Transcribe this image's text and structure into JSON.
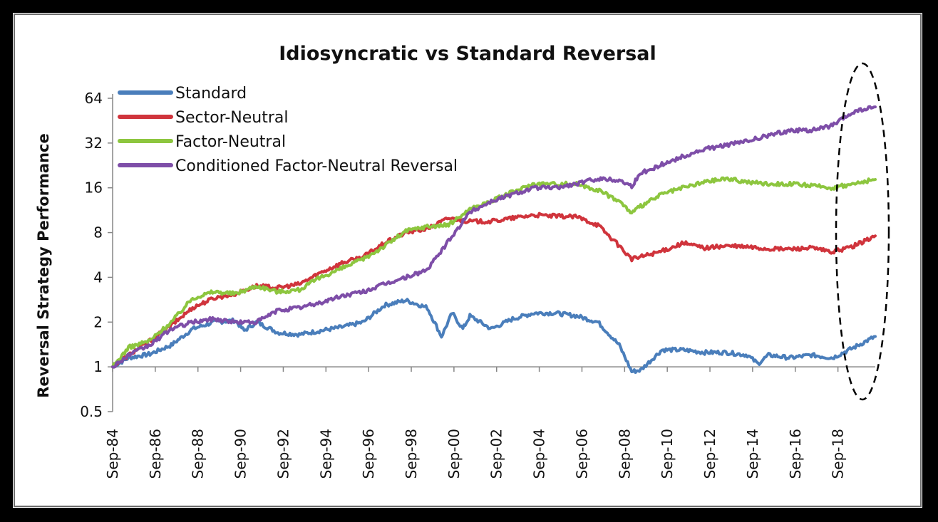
{
  "chart_data": {
    "type": "line",
    "title": "Idiosyncratic vs Standard Reversal",
    "xlabel": "",
    "ylabel": "Reversal Strategy Performance",
    "y_scale": "log2",
    "ylim": [
      0.5,
      64
    ],
    "y_ticks": [
      0.5,
      1,
      2,
      4,
      8,
      16,
      32,
      64
    ],
    "y_tick_labels": [
      "0.5",
      "1",
      "2",
      "4",
      "8",
      "16",
      "32",
      "64"
    ],
    "x_tick_labels": [
      "Sep-84",
      "Sep-86",
      "Sep-88",
      "Sep-90",
      "Sep-92",
      "Sep-94",
      "Sep-96",
      "Sep-98",
      "Sep-00",
      "Sep-02",
      "Sep-04",
      "Sep-06",
      "Sep-08",
      "Sep-10",
      "Sep-12",
      "Sep-14",
      "Sep-16",
      "Sep-18"
    ],
    "xlim": [
      "1984-09",
      "2020-06"
    ],
    "grid": false,
    "legend_position": "top-left",
    "annotation": "dashed ellipse highlighting the most recent period",
    "series": [
      {
        "name": "Standard",
        "color": "#4a7ebb",
        "points": [
          [
            "1984-09",
            1.0
          ],
          [
            "1985-06",
            1.15
          ],
          [
            "1986-06",
            1.22
          ],
          [
            "1987-06",
            1.4
          ],
          [
            "1988-06",
            1.8
          ],
          [
            "1989-06",
            2.0
          ],
          [
            "1990-06",
            2.05
          ],
          [
            "1990-11",
            1.75
          ],
          [
            "1991-06",
            2.0
          ],
          [
            "1992-06",
            1.7
          ],
          [
            "1993-06",
            1.65
          ],
          [
            "1994-06",
            1.75
          ],
          [
            "1995-06",
            1.85
          ],
          [
            "1996-06",
            2.0
          ],
          [
            "1997-06",
            2.6
          ],
          [
            "1998-06",
            2.8
          ],
          [
            "1999-06",
            2.5
          ],
          [
            "2000-02",
            1.6
          ],
          [
            "2000-08",
            2.3
          ],
          [
            "2001-02",
            1.8
          ],
          [
            "2001-06",
            2.2
          ],
          [
            "2002-06",
            1.8
          ],
          [
            "2003-06",
            2.1
          ],
          [
            "2004-06",
            2.3
          ],
          [
            "2005-06",
            2.3
          ],
          [
            "2006-06",
            2.2
          ],
          [
            "2007-06",
            2.0
          ],
          [
            "2008-06",
            1.4
          ],
          [
            "2009-01",
            0.93
          ],
          [
            "2009-06",
            0.95
          ],
          [
            "2010-06",
            1.3
          ],
          [
            "2011-06",
            1.3
          ],
          [
            "2012-06",
            1.25
          ],
          [
            "2013-06",
            1.25
          ],
          [
            "2014-06",
            1.2
          ],
          [
            "2014-12",
            1.05
          ],
          [
            "2015-06",
            1.2
          ],
          [
            "2016-06",
            1.15
          ],
          [
            "2017-06",
            1.2
          ],
          [
            "2018-06",
            1.15
          ],
          [
            "2019-06",
            1.35
          ],
          [
            "2020-06",
            1.6
          ]
        ]
      },
      {
        "name": "Sector-Neutral",
        "color": "#d0343c",
        "points": [
          [
            "1984-09",
            1.0
          ],
          [
            "1985-06",
            1.2
          ],
          [
            "1986-06",
            1.5
          ],
          [
            "1987-06",
            1.9
          ],
          [
            "1988-06",
            2.5
          ],
          [
            "1989-06",
            2.9
          ],
          [
            "1990-06",
            3.1
          ],
          [
            "1991-06",
            3.5
          ],
          [
            "1992-06",
            3.4
          ],
          [
            "1993-06",
            3.6
          ],
          [
            "1994-06",
            4.3
          ],
          [
            "1995-06",
            5.0
          ],
          [
            "1996-06",
            5.5
          ],
          [
            "1997-06",
            6.8
          ],
          [
            "1998-06",
            8.0
          ],
          [
            "1999-06",
            8.5
          ],
          [
            "2000-06",
            10.0
          ],
          [
            "2001-06",
            9.5
          ],
          [
            "2002-06",
            9.5
          ],
          [
            "2003-06",
            10.0
          ],
          [
            "2004-06",
            10.5
          ],
          [
            "2005-06",
            10.3
          ],
          [
            "2006-06",
            10.2
          ],
          [
            "2007-06",
            9.0
          ],
          [
            "2008-06",
            6.5
          ],
          [
            "2009-01",
            5.3
          ],
          [
            "2009-06",
            5.5
          ],
          [
            "2010-06",
            6.0
          ],
          [
            "2011-06",
            6.8
          ],
          [
            "2012-06",
            6.3
          ],
          [
            "2013-06",
            6.5
          ],
          [
            "2014-06",
            6.4
          ],
          [
            "2015-06",
            6.2
          ],
          [
            "2016-06",
            6.2
          ],
          [
            "2017-06",
            6.3
          ],
          [
            "2018-06",
            5.9
          ],
          [
            "2019-06",
            6.5
          ],
          [
            "2020-06",
            7.6
          ]
        ]
      },
      {
        "name": "Factor-Neutral",
        "color": "#8dc63f",
        "points": [
          [
            "1984-09",
            1.0
          ],
          [
            "1985-06",
            1.35
          ],
          [
            "1986-06",
            1.5
          ],
          [
            "1987-06",
            2.0
          ],
          [
            "1988-06",
            2.9
          ],
          [
            "1989-06",
            3.2
          ],
          [
            "1990-06",
            3.1
          ],
          [
            "1991-06",
            3.5
          ],
          [
            "1992-06",
            3.2
          ],
          [
            "1993-06",
            3.3
          ],
          [
            "1994-06",
            4.0
          ],
          [
            "1995-06",
            4.6
          ],
          [
            "1996-06",
            5.3
          ],
          [
            "1997-06",
            6.5
          ],
          [
            "1998-06",
            8.2
          ],
          [
            "1999-06",
            8.8
          ],
          [
            "2000-06",
            9.0
          ],
          [
            "2001-06",
            11.5
          ],
          [
            "2002-06",
            13.0
          ],
          [
            "2003-06",
            15.0
          ],
          [
            "2004-06",
            17.0
          ],
          [
            "2005-06",
            17.0
          ],
          [
            "2006-06",
            17.0
          ],
          [
            "2007-06",
            15.5
          ],
          [
            "2008-06",
            13.0
          ],
          [
            "2009-01",
            10.8
          ],
          [
            "2009-06",
            12.0
          ],
          [
            "2010-06",
            14.5
          ],
          [
            "2011-06",
            16.0
          ],
          [
            "2012-06",
            17.5
          ],
          [
            "2013-06",
            18.5
          ],
          [
            "2014-06",
            17.5
          ],
          [
            "2015-06",
            17.0
          ],
          [
            "2016-06",
            17.0
          ],
          [
            "2017-06",
            16.5
          ],
          [
            "2018-06",
            16.0
          ],
          [
            "2019-06",
            17.0
          ],
          [
            "2020-06",
            18.2
          ]
        ]
      },
      {
        "name": "Conditioned Factor-Neutral Reversal",
        "color": "#7e4ea8",
        "points": [
          [
            "1984-09",
            1.0
          ],
          [
            "1985-06",
            1.2
          ],
          [
            "1986-06",
            1.4
          ],
          [
            "1987-06",
            1.8
          ],
          [
            "1988-06",
            2.0
          ],
          [
            "1989-06",
            2.1
          ],
          [
            "1990-06",
            2.0
          ],
          [
            "1991-06",
            2.0
          ],
          [
            "1992-06",
            2.4
          ],
          [
            "1993-06",
            2.5
          ],
          [
            "1994-06",
            2.7
          ],
          [
            "1995-06",
            3.0
          ],
          [
            "1996-06",
            3.2
          ],
          [
            "1997-06",
            3.6
          ],
          [
            "1998-06",
            4.0
          ],
          [
            "1999-06",
            4.5
          ],
          [
            "2000-06",
            7.0
          ],
          [
            "2001-06",
            11.0
          ],
          [
            "2002-06",
            13.0
          ],
          [
            "2003-06",
            14.5
          ],
          [
            "2004-06",
            16.0
          ],
          [
            "2005-06",
            16.0
          ],
          [
            "2006-06",
            17.0
          ],
          [
            "2007-06",
            18.5
          ],
          [
            "2008-06",
            18.0
          ],
          [
            "2009-01",
            16.5
          ],
          [
            "2009-06",
            20.0
          ],
          [
            "2010-06",
            23.0
          ],
          [
            "2011-06",
            26.0
          ],
          [
            "2012-06",
            29.0
          ],
          [
            "2013-06",
            31.0
          ],
          [
            "2014-06",
            33.0
          ],
          [
            "2015-06",
            36.0
          ],
          [
            "2016-06",
            39.0
          ],
          [
            "2017-06",
            39.0
          ],
          [
            "2018-06",
            42.0
          ],
          [
            "2019-06",
            52.0
          ],
          [
            "2020-06",
            56.0
          ]
        ]
      }
    ]
  }
}
